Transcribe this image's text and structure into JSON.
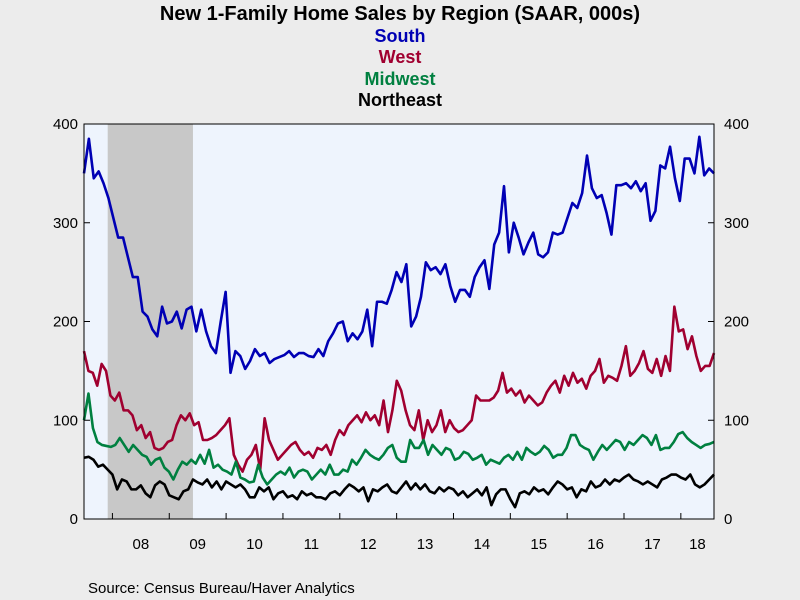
{
  "chart_data": {
    "type": "line",
    "title": "New 1-Family Home Sales by Region (SAAR, 000s)",
    "source": "Source:  Census Bureau/Haver Analytics",
    "ylim": [
      0,
      400
    ],
    "yticks_left": [
      "0",
      "100",
      "200",
      "300",
      "400"
    ],
    "yticks_right": [
      "0",
      "100",
      "200",
      "300",
      "400"
    ],
    "xlim": [
      2007.5,
      2018.5833
    ],
    "xtick_labels": [
      "08",
      "09",
      "10",
      "11",
      "12",
      "13",
      "14",
      "15",
      "16",
      "17",
      "18"
    ],
    "recession": {
      "start": 2007.917,
      "end": 2009.417
    },
    "grid": false,
    "legend_placement": "top-center",
    "colors": {
      "plot_bg": "#eef4fd",
      "page_bg": "#ececec",
      "recession": "#c8c8c8"
    },
    "series": [
      {
        "name": "South",
        "color": "#0000b4",
        "values": [
          350,
          385,
          345,
          352,
          340,
          325,
          305,
          285,
          285,
          265,
          245,
          245,
          210,
          205,
          192,
          185,
          215,
          198,
          200,
          210,
          193,
          212,
          215,
          190,
          212,
          190,
          175,
          168,
          200,
          230,
          148,
          170,
          165,
          152,
          160,
          172,
          165,
          168,
          158,
          162,
          164,
          166,
          170,
          164,
          168,
          168,
          165,
          164,
          172,
          165,
          180,
          188,
          198,
          200,
          180,
          188,
          182,
          190,
          212,
          175,
          220,
          220,
          218,
          232,
          250,
          240,
          258,
          195,
          205,
          225,
          260,
          252,
          255,
          248,
          258,
          236,
          220,
          232,
          232,
          225,
          245,
          255,
          262,
          233,
          278,
          290,
          337,
          270,
          300,
          285,
          268,
          280,
          290,
          268,
          265,
          270,
          290,
          288,
          290,
          305,
          320,
          315,
          330,
          368,
          335,
          325,
          328,
          310,
          288,
          338,
          338,
          340,
          335,
          342,
          332,
          340,
          302,
          312,
          358,
          355,
          377,
          345,
          322,
          365,
          365,
          350,
          387,
          348,
          355,
          350
        ]
      },
      {
        "name": "West",
        "color": "#a00030",
        "values": [
          170,
          150,
          148,
          135,
          157,
          150,
          125,
          120,
          128,
          110,
          110,
          105,
          90,
          95,
          82,
          88,
          72,
          70,
          72,
          78,
          80,
          95,
          105,
          100,
          107,
          95,
          98,
          80,
          80,
          82,
          85,
          90,
          95,
          102,
          65,
          55,
          48,
          60,
          65,
          75,
          50,
          102,
          80,
          70,
          60,
          65,
          70,
          75,
          78,
          70,
          65,
          68,
          62,
          72,
          70,
          75,
          65,
          80,
          90,
          85,
          95,
          100,
          105,
          98,
          108,
          100,
          105,
          95,
          120,
          88,
          110,
          140,
          130,
          110,
          95,
          90,
          110,
          80,
          100,
          88,
          95,
          110,
          88,
          100,
          92,
          88,
          90,
          95,
          100,
          125,
          120,
          120,
          120,
          123,
          130,
          148,
          128,
          132,
          125,
          130,
          118,
          125,
          120,
          115,
          118,
          128,
          135,
          140,
          128,
          145,
          135,
          148,
          138,
          142,
          132,
          145,
          150,
          162,
          138,
          145,
          143,
          140,
          155,
          175,
          145,
          150,
          158,
          170,
          152,
          148,
          162,
          145,
          165,
          150,
          215,
          190,
          192,
          172,
          185,
          165,
          150,
          155,
          155,
          168
        ]
      },
      {
        "name": "Midwest",
        "color": "#008040",
        "values": [
          100,
          127,
          92,
          78,
          75,
          74,
          73,
          75,
          82,
          75,
          68,
          75,
          70,
          65,
          63,
          55,
          60,
          62,
          52,
          48,
          40,
          50,
          58,
          55,
          60,
          56,
          65,
          56,
          70,
          52,
          55,
          50,
          48,
          45,
          58,
          42,
          40,
          37,
          38,
          55,
          42,
          35,
          40,
          45,
          48,
          45,
          52,
          42,
          48,
          50,
          48,
          40,
          45,
          50,
          45,
          55,
          45,
          45,
          50,
          48,
          60,
          55,
          62,
          70,
          65,
          62,
          60,
          65,
          72,
          75,
          62,
          58,
          58,
          80,
          72,
          72,
          80,
          65,
          75,
          70,
          65,
          72,
          70,
          60,
          62,
          68,
          66,
          60,
          62,
          65,
          55,
          60,
          58,
          56,
          62,
          65,
          60,
          68,
          60,
          72,
          68,
          65,
          68,
          74,
          70,
          62,
          65,
          65,
          72,
          85,
          85,
          75,
          72,
          70,
          60,
          68,
          75,
          70,
          75,
          80,
          78,
          70,
          78,
          75,
          80,
          85,
          82,
          75,
          85,
          70,
          72,
          72,
          78,
          86,
          88,
          82,
          78,
          75,
          72,
          75,
          76,
          78
        ]
      },
      {
        "name": "Northeast",
        "color": "#000000",
        "values": [
          62,
          63,
          60,
          53,
          55,
          50,
          45,
          30,
          40,
          38,
          30,
          30,
          34,
          26,
          22,
          34,
          38,
          35,
          24,
          22,
          20,
          28,
          30,
          40,
          37,
          35,
          40,
          32,
          38,
          30,
          38,
          35,
          32,
          35,
          30,
          22,
          22,
          32,
          28,
          32,
          20,
          26,
          28,
          22,
          24,
          20,
          28,
          24,
          26,
          22,
          22,
          20,
          26,
          28,
          24,
          30,
          35,
          32,
          28,
          32,
          18,
          30,
          28,
          32,
          35,
          28,
          26,
          32,
          38,
          30,
          36,
          30,
          35,
          28,
          26,
          32,
          28,
          32,
          30,
          24,
          28,
          22,
          26,
          30,
          24,
          32,
          14,
          25,
          30,
          30,
          20,
          12,
          26,
          28,
          25,
          32,
          28,
          30,
          25,
          32,
          38,
          35,
          30,
          32,
          22,
          30,
          28,
          38,
          32,
          34,
          40,
          35,
          40,
          38,
          42,
          45,
          40,
          38,
          35,
          38,
          35,
          32,
          40,
          42,
          45,
          45,
          42,
          40,
          45,
          35,
          32,
          35,
          40,
          45
        ]
      }
    ]
  }
}
